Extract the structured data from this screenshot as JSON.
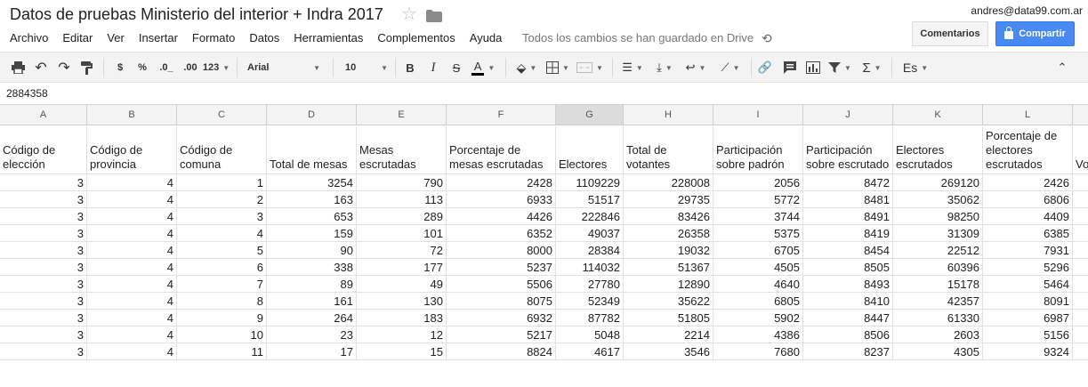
{
  "doc": {
    "title": "Datos de pruebas Ministerio del interior + Indra 2017",
    "account": "andres@data99.com.ar",
    "comments_label": "Comentarios",
    "share_label": "Compartir",
    "saved_status": "Todos los cambios se han guardado en Drive"
  },
  "menu": [
    "Archivo",
    "Editar",
    "Ver",
    "Insertar",
    "Formato",
    "Datos",
    "Herramientas",
    "Complementos",
    "Ayuda"
  ],
  "toolbar": {
    "currency": "$",
    "percent": "%",
    "decrease_decimals": ".0_",
    "increase_decimals": ".00",
    "more_formats": "123",
    "font": "Arial",
    "font_size": "10",
    "bold": "B",
    "italic": "I",
    "strikethrough": "S",
    "text_color": "A",
    "input_tools": "Es"
  },
  "formula_bar": {
    "value": "2884358"
  },
  "columns": [
    "A",
    "B",
    "C",
    "D",
    "E",
    "F",
    "G",
    "H",
    "I",
    "J",
    "K",
    "L"
  ],
  "selected_column": "G",
  "headers": [
    "Código de elección",
    "Código de provincia",
    "Código de comuna",
    "Total de mesas",
    "Mesas escrutadas",
    "Porcentaje de mesas escrutadas",
    "Electores",
    "Total de votantes",
    "Participación sobre padrón",
    "Participación sobre escrutado",
    "Electores escrutados",
    "Porcentaje de electores escrutados",
    "Vo"
  ],
  "rows": [
    [
      3,
      4,
      1,
      3254,
      790,
      2428,
      1109229,
      228008,
      2056,
      8472,
      269120,
      2426
    ],
    [
      3,
      4,
      2,
      163,
      113,
      6933,
      51517,
      29735,
      5772,
      8481,
      35062,
      6806
    ],
    [
      3,
      4,
      3,
      653,
      289,
      4426,
      222846,
      83426,
      3744,
      8491,
      98250,
      4409
    ],
    [
      3,
      4,
      4,
      159,
      101,
      6352,
      49037,
      26358,
      5375,
      8419,
      31309,
      6385
    ],
    [
      3,
      4,
      5,
      90,
      72,
      8000,
      28384,
      19032,
      6705,
      8454,
      22512,
      7931
    ],
    [
      3,
      4,
      6,
      338,
      177,
      5237,
      114032,
      51367,
      4505,
      8505,
      60396,
      5296
    ],
    [
      3,
      4,
      7,
      89,
      49,
      5506,
      27780,
      12890,
      4640,
      8493,
      15178,
      5464
    ],
    [
      3,
      4,
      8,
      161,
      130,
      8075,
      52349,
      35622,
      6805,
      8410,
      42357,
      8091
    ],
    [
      3,
      4,
      9,
      264,
      183,
      6932,
      87782,
      51805,
      5902,
      8447,
      61330,
      6987
    ],
    [
      3,
      4,
      10,
      23,
      12,
      5217,
      5048,
      2214,
      4386,
      8506,
      2603,
      5156
    ],
    [
      3,
      4,
      11,
      17,
      15,
      8824,
      4617,
      3546,
      7680,
      8237,
      4305,
      9324
    ]
  ]
}
